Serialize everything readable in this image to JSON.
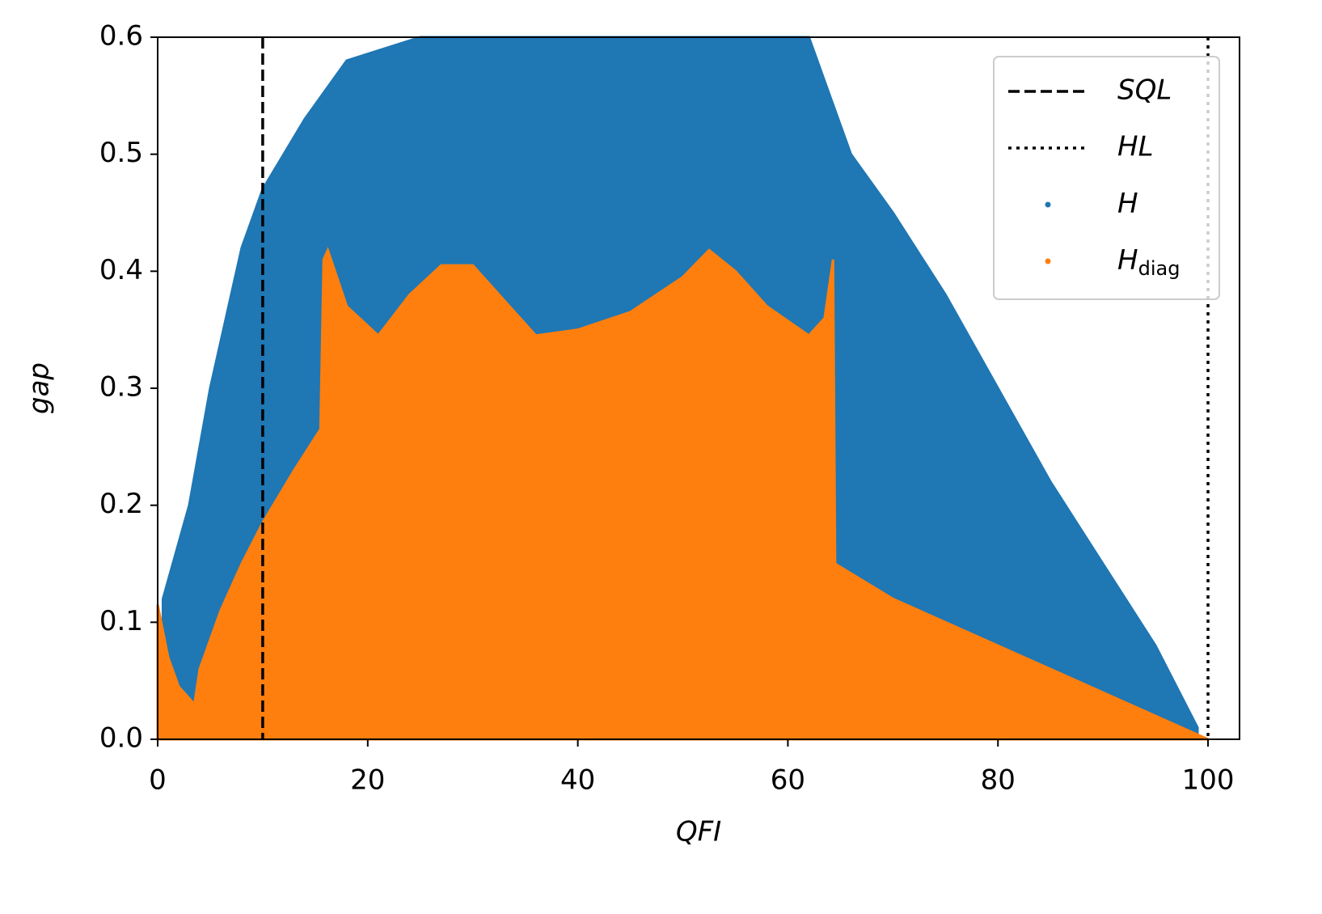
{
  "chart_data": {
    "type": "scatter",
    "xlabel": "QFI",
    "ylabel": "gap",
    "xlim": [
      0,
      103
    ],
    "ylim": [
      0,
      0.6
    ],
    "xticks": [
      0,
      20,
      40,
      60,
      80,
      100
    ],
    "yticks": [
      {
        "value": 0,
        "label": "0.0"
      },
      0.1,
      0.2,
      0.3,
      0.4,
      0.5,
      0.6
    ],
    "legend": "upper right",
    "reference_lines": [
      {
        "name": "SQL",
        "x": 10,
        "style": "dashed",
        "color": "#000000"
      },
      {
        "name": "HL",
        "x": 100,
        "style": "dotted",
        "color": "#000000"
      }
    ],
    "series": [
      {
        "name": "H",
        "color": "#1f77b4",
        "x": [
          0.5,
          3,
          5,
          8,
          10,
          14,
          18,
          25,
          40,
          55,
          62,
          64,
          66,
          70,
          75,
          80,
          85,
          90,
          95,
          99
        ],
        "values": [
          0.12,
          0.2,
          0.3,
          0.42,
          0.47,
          0.53,
          0.58,
          0.6,
          0.6,
          0.6,
          0.6,
          0.55,
          0.5,
          0.45,
          0.38,
          0.3,
          0.22,
          0.15,
          0.08,
          0.01
        ]
      },
      {
        "name": "H",
        "name_subscript": "diag",
        "color": "#ff7f0e",
        "x": [
          0,
          1,
          2,
          3.5,
          4,
          6,
          8,
          10,
          13,
          15.5,
          15.8,
          16.2,
          18,
          21,
          24,
          27,
          30,
          33,
          36,
          40,
          45,
          50,
          52.5,
          55,
          58,
          62,
          63.5,
          64.3,
          64.5,
          70,
          80,
          90,
          100
        ],
        "values": [
          0.115,
          0.07,
          0.045,
          0.03,
          0.06,
          0.11,
          0.15,
          0.185,
          0.23,
          0.265,
          0.41,
          0.418,
          0.37,
          0.345,
          0.38,
          0.405,
          0.405,
          0.375,
          0.345,
          0.35,
          0.365,
          0.395,
          0.418,
          0.4,
          0.37,
          0.345,
          0.36,
          0.41,
          0.15,
          0.12,
          0.08,
          0.04,
          0
        ]
      }
    ]
  }
}
